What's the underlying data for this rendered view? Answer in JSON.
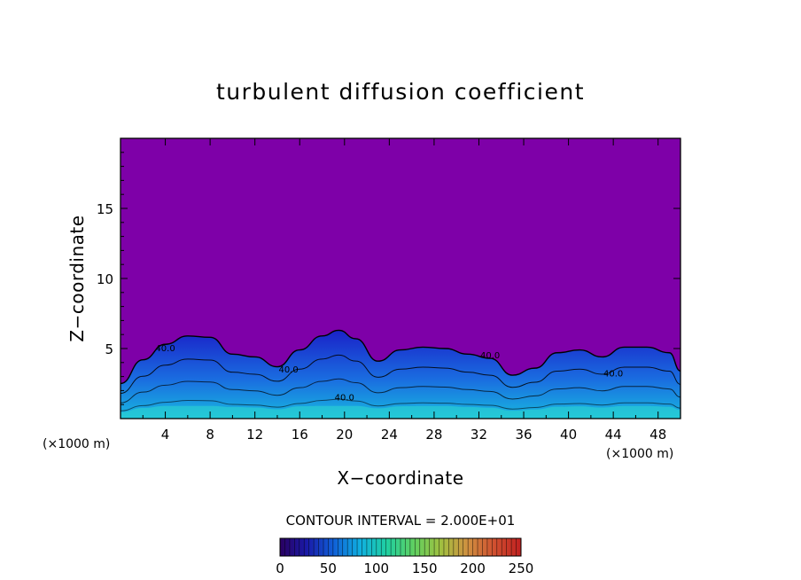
{
  "chart_data": {
    "type": "heatmap",
    "title": "turbulent diffusion coefficient",
    "xlabel": "X−coordinate",
    "ylabel": "Z−coordinate",
    "x_unit_left": "(×1000 m)",
    "x_unit_right": "(×1000 m)",
    "xlim": [
      0,
      50
    ],
    "ylim": [
      0,
      20
    ],
    "x_ticks": [
      4,
      8,
      12,
      16,
      20,
      24,
      28,
      32,
      36,
      40,
      44,
      48
    ],
    "y_ticks": [
      5,
      10,
      15
    ],
    "contour_interval_text": "CONTOUR INTERVAL = 2.000E+01",
    "contour_labels": [
      "40.0",
      "40.0",
      "40.0",
      "40.0",
      "40.0"
    ],
    "colorbar": {
      "range": [
        0,
        250
      ],
      "ticks": [
        0,
        50,
        100,
        150,
        200,
        250
      ],
      "colors": [
        "#2a0060",
        "#1a1aa8",
        "#1060d8",
        "#10b0e0",
        "#20d0a0",
        "#60d060",
        "#a0c040",
        "#d09040",
        "#d05030",
        "#c02020"
      ]
    },
    "background_color": "#7e00a8",
    "turbulent_layer": {
      "x": [
        0,
        2,
        4,
        6,
        8,
        10,
        12,
        14,
        16,
        18,
        19.5,
        21,
        23,
        25,
        27,
        29,
        31,
        33,
        35,
        37,
        39,
        41,
        43,
        45,
        47,
        49,
        50
      ],
      "top_z": [
        2.5,
        4.2,
        5.3,
        5.9,
        5.8,
        4.6,
        4.4,
        3.7,
        4.9,
        5.9,
        6.3,
        5.7,
        4.1,
        4.9,
        5.1,
        5.0,
        4.6,
        4.3,
        3.1,
        3.6,
        4.7,
        4.9,
        4.4,
        5.1,
        5.1,
        4.7,
        3.4
      ]
    }
  }
}
